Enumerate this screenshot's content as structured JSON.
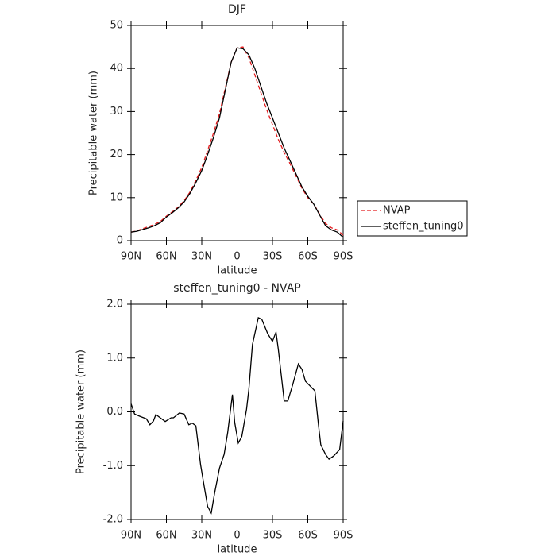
{
  "chart_data": [
    {
      "type": "line",
      "title": "DJF",
      "xlabel": "latitude",
      "ylabel": "Precipitable water (mm)",
      "x": [
        90,
        85,
        80,
        75,
        70,
        65,
        60,
        55,
        50,
        45,
        40,
        35,
        30,
        25,
        20,
        15,
        10,
        5,
        0,
        -5,
        -10,
        -15,
        -20,
        -25,
        -30,
        -35,
        -40,
        -45,
        -50,
        -55,
        -60,
        -65,
        -70,
        -75,
        -80,
        -85,
        -90
      ],
      "series": [
        {
          "name": "NVAP",
          "color": "#e41a1c",
          "dashed": true,
          "values": [
            2.0,
            2.3,
            2.8,
            3.3,
            3.8,
            4.5,
            5.7,
            6.7,
            7.8,
            9.3,
            11.3,
            14.0,
            17.0,
            21.0,
            25.0,
            29.5,
            35.5,
            41.5,
            44.8,
            45.0,
            42.5,
            38.5,
            34.5,
            30.5,
            27.0,
            23.5,
            20.5,
            17.8,
            15.0,
            12.2,
            10.0,
            8.5,
            6.2,
            4.0,
            3.0,
            2.5,
            1.3
          ]
        },
        {
          "name": "steffen_tuning0",
          "color": "#000000",
          "dashed": false,
          "values": [
            2.0,
            2.2,
            2.6,
            3.0,
            3.5,
            4.2,
            5.5,
            6.5,
            7.6,
            9.0,
            11.0,
            13.5,
            16.3,
            20.0,
            24.0,
            28.5,
            35.0,
            41.5,
            44.8,
            44.6,
            43.2,
            40.0,
            36.0,
            32.0,
            28.5,
            25.0,
            21.5,
            18.5,
            15.5,
            12.5,
            10.3,
            8.5,
            6.0,
            3.5,
            2.5,
            2.0,
            0.8
          ]
        }
      ],
      "xlim": [
        90,
        -90
      ],
      "xticks": [
        {
          "value": 90,
          "label": "90N"
        },
        {
          "value": 60,
          "label": "60N"
        },
        {
          "value": 30,
          "label": "30N"
        },
        0,
        {
          "value": -30,
          "label": "30S"
        },
        {
          "value": -60,
          "label": "60S"
        },
        {
          "value": -90,
          "label": "90S"
        }
      ],
      "ylim": [
        0,
        50
      ],
      "yticks": [
        0,
        10,
        20,
        30,
        40,
        50
      ],
      "legend": "outside-right"
    },
    {
      "type": "line",
      "title": "steffen_tuning0 - NVAP",
      "xlabel": "latitude",
      "ylabel": "Precipitable water (mm)",
      "x": [
        90,
        87,
        83,
        77,
        74,
        71,
        69,
        61,
        56,
        54,
        49,
        45,
        41,
        38,
        35,
        31,
        28,
        25,
        22,
        19,
        15,
        11,
        8,
        4,
        2,
        -1,
        -4,
        -8,
        -10,
        -13,
        -18,
        -21,
        -26,
        -30,
        -33,
        -35,
        -40,
        -43,
        -47,
        -52,
        -55,
        -58,
        -66,
        -69,
        -71,
        -75,
        -78,
        -82,
        -87,
        -90
      ],
      "series": [
        {
          "name": "steffen_tuning0 - NVAP",
          "color": "#000000",
          "dashed": false,
          "values": [
            0.15,
            -0.04,
            -0.08,
            -0.13,
            -0.24,
            -0.17,
            -0.05,
            -0.18,
            -0.11,
            -0.11,
            -0.02,
            -0.04,
            -0.24,
            -0.21,
            -0.26,
            -0.98,
            -1.38,
            -1.76,
            -1.88,
            -1.5,
            -1.05,
            -0.79,
            -0.39,
            0.32,
            -0.2,
            -0.58,
            -0.46,
            0.05,
            0.42,
            1.25,
            1.75,
            1.72,
            1.45,
            1.31,
            1.48,
            1.16,
            0.2,
            0.2,
            0.49,
            0.89,
            0.79,
            0.57,
            0.39,
            -0.24,
            -0.61,
            -0.79,
            -0.88,
            -0.82,
            -0.7,
            -0.17
          ]
        }
      ],
      "xlim": [
        90,
        -90
      ],
      "xticks": [
        {
          "value": 90,
          "label": "90N"
        },
        {
          "value": 60,
          "label": "60N"
        },
        {
          "value": 30,
          "label": "30N"
        },
        0,
        {
          "value": -30,
          "label": "30S"
        },
        {
          "value": -60,
          "label": "60S"
        },
        {
          "value": -90,
          "label": "90S"
        }
      ],
      "ylim": [
        -2,
        2
      ],
      "yticks": [
        {
          "value": -2,
          "label": "-2.0"
        },
        {
          "value": -1,
          "label": "-1.0"
        },
        {
          "value": 0,
          "label": "0.0"
        },
        {
          "value": 1,
          "label": "1.0"
        },
        {
          "value": 2,
          "label": "2.0"
        }
      ]
    }
  ]
}
